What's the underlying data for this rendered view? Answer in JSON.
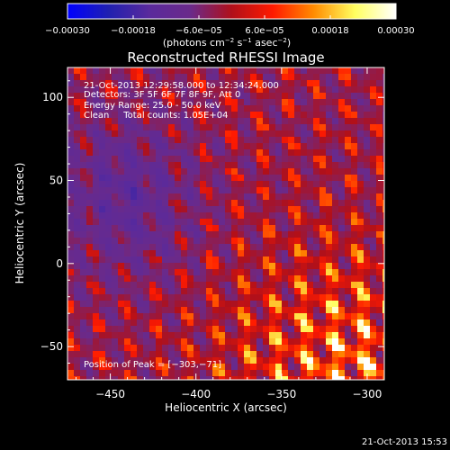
{
  "chart_data": {
    "type": "heatmap",
    "title": "Reconstructed RHESSI Image",
    "xlabel": "Heliocentric X (arcsec)",
    "ylabel": "Heliocentric Y (arcsec)",
    "xlim": [
      -475,
      -290
    ],
    "ylim": [
      -70,
      118
    ],
    "x_ticks": [
      -450,
      -400,
      -350,
      -300
    ],
    "x_tick_labels": [
      "−450",
      "−400",
      "−350",
      "−300"
    ],
    "y_ticks": [
      -50,
      0,
      50,
      100
    ],
    "y_tick_labels": [
      "−50",
      "0",
      "50",
      "100"
    ],
    "colorbar": {
      "range": [
        -0.0003,
        0.0003
      ],
      "ticks": [
        -0.0003,
        -0.00018,
        -6e-05,
        6e-05,
        0.00018,
        0.0003
      ],
      "tick_labels": [
        "−0.00030",
        "−0.00018",
        "−6.0e−05",
        "6.0e−05",
        "0.00018",
        "0.00030"
      ],
      "units_base": "(photons cm",
      "units_e1": "−2",
      "units_mid": " s",
      "units_e2": "−1",
      "units_mid2": " asec",
      "units_e3": "−2",
      "units_end": ")"
    },
    "annotations": [
      "21-Oct-2013 12:29:58.000 to 12:34:24.000",
      "Detectors: 3F 5F 6F 7F 8F 9F, Att 0",
      "Energy Range: 25.0 - 50.0 keV",
      "Clean     Total counts: 1.05E+04"
    ],
    "peak_label": "Position of Peak = [−303,−71]",
    "peak": [
      -303,
      -71
    ],
    "stripe_angle_deg": 30,
    "colors": {
      "stops": [
        "#0000ff",
        "#2020b0",
        "#5a2a9c",
        "#6a2a8a",
        "#b0101a",
        "#ff1a00",
        "#ff8c00",
        "#ffff60",
        "#ffffff"
      ]
    }
  },
  "footer": {
    "timestamp": "21-Oct-2013 15:53"
  }
}
